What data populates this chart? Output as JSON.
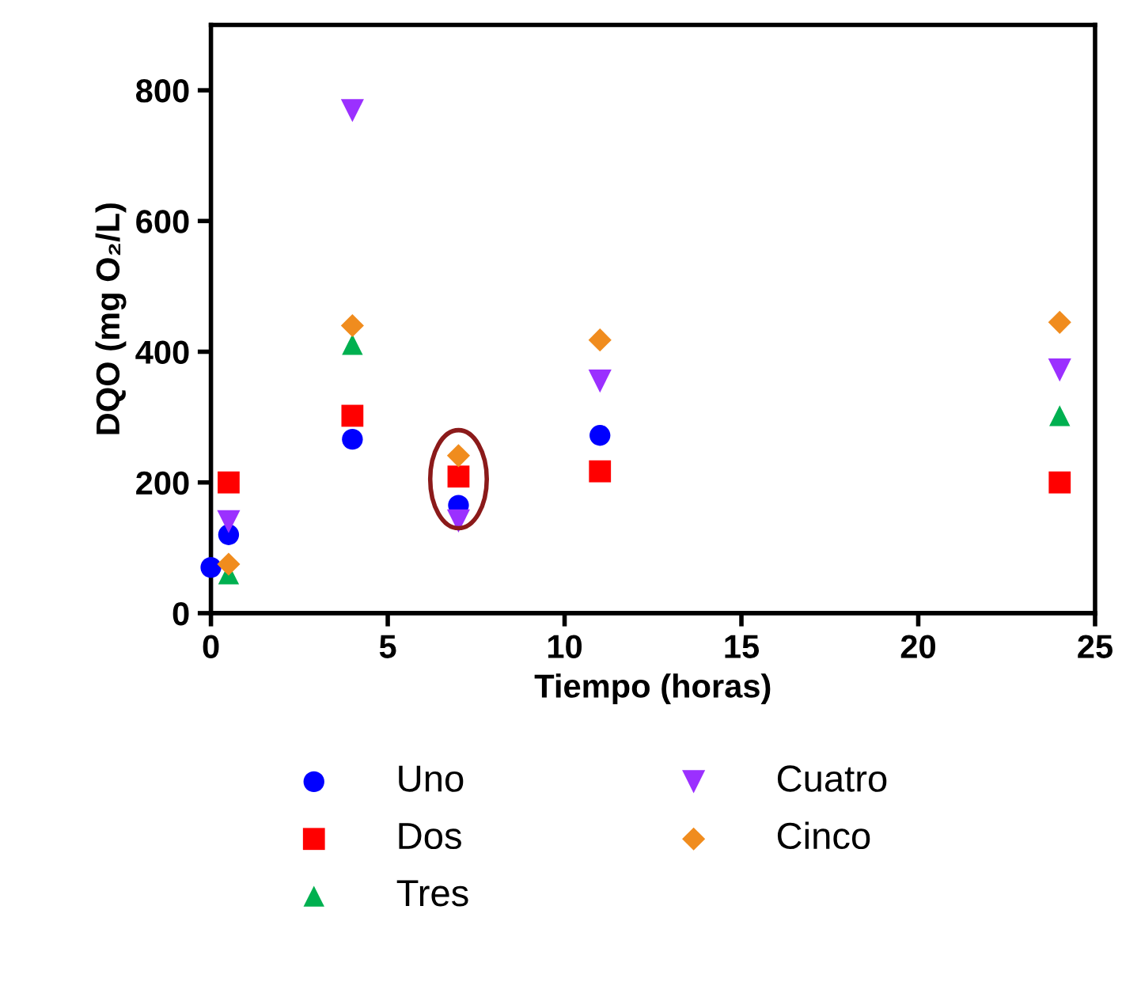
{
  "chart_data": {
    "type": "scatter",
    "xlabel": "Tiempo (horas)",
    "ylabel": "DQO (mg O₂/L)",
    "x": [
      0,
      0.5,
      4,
      7,
      11,
      24
    ],
    "series": [
      {
        "name": "Uno",
        "color": "#0000ff",
        "marker": "circle",
        "values": [
          70,
          120,
          266,
          165,
          272,
          null
        ]
      },
      {
        "name": "Dos",
        "color": "#ff0000",
        "marker": "square",
        "values": [
          null,
          200,
          302,
          209,
          217,
          200
        ]
      },
      {
        "name": "Tres",
        "color": "#00b050",
        "marker": "triangle",
        "values": [
          null,
          60,
          411,
          null,
          null,
          302
        ]
      },
      {
        "name": "Cuatro",
        "color": "#9b30ff",
        "marker": "triangle_down",
        "values": [
          null,
          140,
          769,
          141,
          355,
          372
        ]
      },
      {
        "name": "Cinco",
        "color": "#f08c1e",
        "marker": "diamond",
        "values": [
          null,
          75,
          440,
          241,
          418,
          445
        ]
      }
    ],
    "xlim": [
      0,
      25
    ],
    "xticks": [
      0,
      5,
      10,
      15,
      20,
      25
    ],
    "ylim": [
      0,
      900
    ],
    "yticks": [
      0,
      200,
      400,
      600,
      800
    ],
    "grid": false,
    "legend": "bottom"
  }
}
